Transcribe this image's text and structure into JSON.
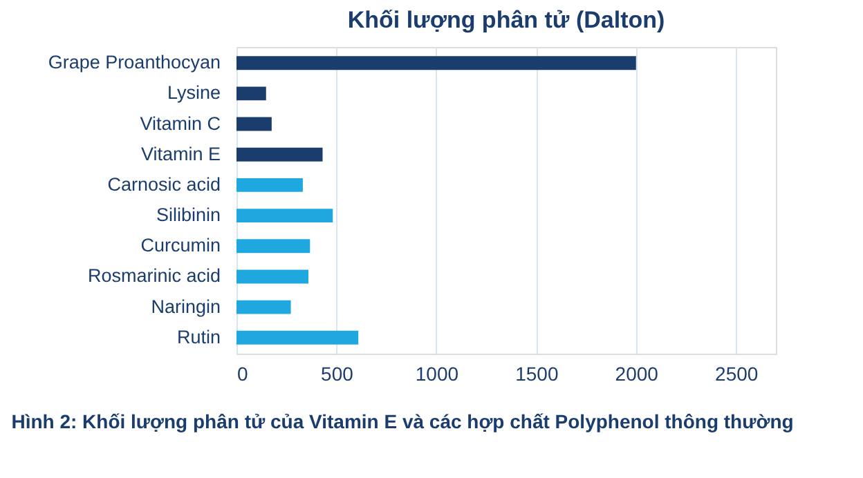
{
  "chart_data": {
    "type": "bar",
    "orientation": "horizontal",
    "title": "Khối lượng phân tử (Dalton)",
    "categories": [
      "Grape Proanthocyan",
      "Lysine",
      "Vitamin C",
      "Vitamin E",
      "Carnosic acid",
      "Silibinin",
      "Curcumin",
      "Rosmarinic acid",
      "Naringin",
      "Rutin"
    ],
    "values": [
      2000,
      148,
      176,
      431,
      332,
      482,
      368,
      360,
      272,
      610
    ],
    "colors": [
      "#1b3d6e",
      "#1b3d6e",
      "#1b3d6e",
      "#1b3d6e",
      "#1fa8e0",
      "#1fa8e0",
      "#1fa8e0",
      "#1fa8e0",
      "#1fa8e0",
      "#1fa8e0"
    ],
    "xlim": [
      0,
      2700
    ],
    "xticks": [
      0,
      500,
      1000,
      1500,
      2000,
      2500
    ],
    "grid": "x",
    "annotations": [
      "Hình 2: Khối lượng phân tử của Vitamin E và các hợp chất Polyphenol thông thường"
    ]
  }
}
